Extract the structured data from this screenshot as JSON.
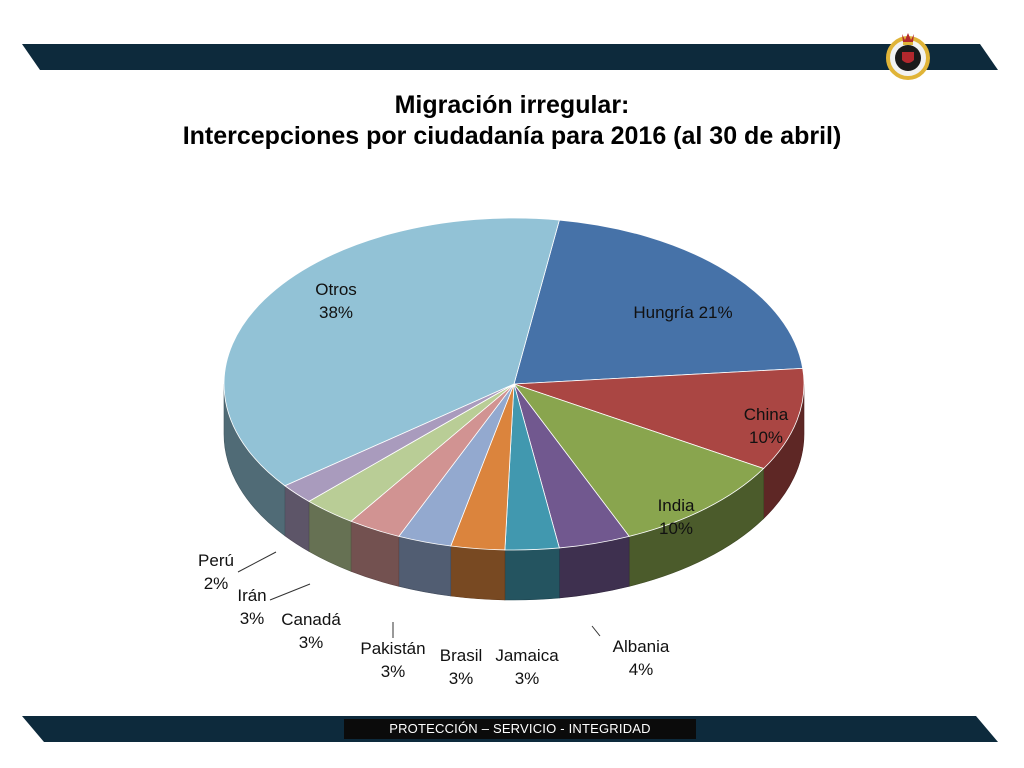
{
  "header": {
    "title_line1": "Migración irregular:",
    "title_line2": "Intercepciones por ciudadanía para 2016 (al 30 de abril)"
  },
  "footer": {
    "text": "PROTECCIÓN – SERVICIO - INTEGRIDAD"
  },
  "colors": {
    "band": "#0d2a3c",
    "crest_gold": "#e0b438",
    "crest_red": "#b3282d"
  },
  "icons": {
    "crest": "agency-crest-icon"
  },
  "chart_data": {
    "type": "pie",
    "title": "Migración irregular: Intercepciones por ciudadanía para 2016 (al 30 de abril)",
    "slices": [
      {
        "name": "Hungría",
        "percent": 21,
        "label": [
          "Hungría 21%"
        ],
        "color": "#4672a8"
      },
      {
        "name": "China",
        "percent": 10,
        "label": [
          "China",
          "10%"
        ],
        "color": "#aa4643"
      },
      {
        "name": "India",
        "percent": 10,
        "label": [
          "India",
          "10%"
        ],
        "color": "#89a54e"
      },
      {
        "name": "Albania",
        "percent": 4,
        "label": [
          "Albania",
          "4%"
        ],
        "color": "#71588f"
      },
      {
        "name": "Jamaica",
        "percent": 3,
        "label": [
          "Jamaica",
          "3%"
        ],
        "color": "#4198af"
      },
      {
        "name": "Brasil",
        "percent": 3,
        "label": [
          "Brasil",
          "3%"
        ],
        "color": "#db843d"
      },
      {
        "name": "Pakistán",
        "percent": 3,
        "label": [
          "Pakistán",
          "3%"
        ],
        "color": "#93a9cf"
      },
      {
        "name": "Canadá",
        "percent": 3,
        "label": [
          "Canadá",
          "3%"
        ],
        "color": "#d19392"
      },
      {
        "name": "Irán",
        "percent": 3,
        "label": [
          "Irán",
          "3%"
        ],
        "color": "#b9cd96"
      },
      {
        "name": "Perú",
        "percent": 2,
        "label": [
          "Perú",
          "2%"
        ],
        "color": "#a99bbd"
      },
      {
        "name": "Otros",
        "percent": 38,
        "label": [
          "Otros",
          "38%"
        ],
        "color": "#92c2d6"
      }
    ]
  }
}
